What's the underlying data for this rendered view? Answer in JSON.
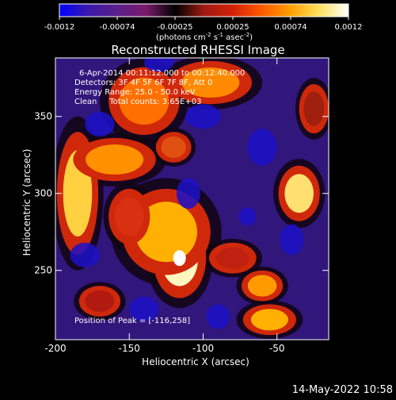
{
  "colorbar": {
    "ticks": [
      "-0.0012",
      "-0.00074",
      "-0.00025",
      "0.00025",
      "0.00074",
      "0.0012"
    ],
    "unit_prefix": "(photons cm",
    "unit_exp1": "-2",
    "unit_mid": " s",
    "unit_exp2": "-1",
    "unit_mid2": " asec",
    "unit_exp3": "-2",
    "unit_suffix": ")",
    "gradient": [
      "#0000ff",
      "#3a1aa8",
      "#5a1f8a",
      "#7a1a6a",
      "#000000",
      "#a01a10",
      "#d4200a",
      "#ff5a00",
      "#ffa000",
      "#ffe060",
      "#ffffff"
    ]
  },
  "plot": {
    "title": "Reconstructed RHESSI Image",
    "info_lines": [
      "6-Apr-2014 00:11:12.000 to 00:12:40.000",
      "Detectors: 3F 4F 5F 6F 7F 8F, Att 0",
      "Energy Range: 25.0 - 50.0 keV",
      "Clean     Total counts: 3.65E+03"
    ],
    "peak_label": "Position of Peak = [-116,258]",
    "x_axis": {
      "label": "Heliocentric X (arcsec)",
      "ticks": [
        {
          "value": -200,
          "label": "-200"
        },
        {
          "value": -150,
          "label": "-150"
        },
        {
          "value": -100,
          "label": "-100"
        },
        {
          "value": -50,
          "label": "-50"
        }
      ],
      "range": [
        -200,
        -15
      ]
    },
    "y_axis": {
      "label": "Heliocentric Y (arcsec)",
      "ticks": [
        {
          "value": 250,
          "label": "250"
        },
        {
          "value": 300,
          "label": "300"
        },
        {
          "value": 350,
          "label": "350"
        }
      ],
      "range": [
        205,
        388
      ]
    },
    "blobs": [
      {
        "x": -116,
        "y": 258,
        "rx": 18,
        "ry": 26,
        "c": "#fff6c0"
      },
      {
        "x": -125,
        "y": 275,
        "rx": 30,
        "ry": 28,
        "c": "#ffb000"
      },
      {
        "x": -185,
        "y": 300,
        "rx": 14,
        "ry": 40,
        "c": "#ffd040"
      },
      {
        "x": -160,
        "y": 322,
        "rx": 28,
        "ry": 14,
        "c": "#ff9000"
      },
      {
        "x": -140,
        "y": 360,
        "rx": 24,
        "ry": 22,
        "c": "#ff7000"
      },
      {
        "x": -95,
        "y": 372,
        "rx": 28,
        "ry": 14,
        "c": "#ff8a00"
      },
      {
        "x": -35,
        "y": 300,
        "rx": 14,
        "ry": 18,
        "c": "#ffe070"
      },
      {
        "x": -60,
        "y": 240,
        "rx": 14,
        "ry": 10,
        "c": "#ff9a00"
      },
      {
        "x": -55,
        "y": 218,
        "rx": 18,
        "ry": 10,
        "c": "#ffb000"
      },
      {
        "x": -120,
        "y": 330,
        "rx": 12,
        "ry": 10,
        "c": "#e05010"
      },
      {
        "x": -150,
        "y": 285,
        "rx": 14,
        "ry": 18,
        "c": "#d83010"
      },
      {
        "x": -80,
        "y": 258,
        "rx": 16,
        "ry": 10,
        "c": "#c02010"
      },
      {
        "x": -170,
        "y": 230,
        "rx": 14,
        "ry": 10,
        "c": "#b01a10"
      },
      {
        "x": -25,
        "y": 355,
        "rx": 10,
        "ry": 16,
        "c": "#a02010"
      }
    ]
  },
  "footer": {
    "datetime": "14-May-2022 10:58"
  }
}
